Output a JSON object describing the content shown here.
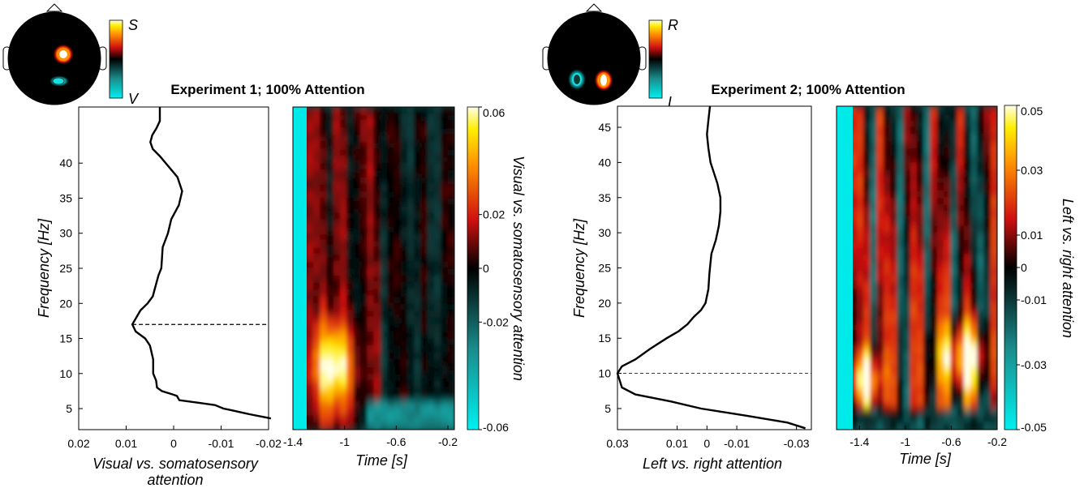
{
  "panels": [
    {
      "title": "Experiment 1; 100% Attention",
      "topo_cbar": {
        "top": "S",
        "bottom": "V"
      },
      "chart_data": {
        "type": "line",
        "ylabel": "Frequency [Hz]",
        "xlabel": [
          "Visual vs. somatosensory",
          "attention"
        ],
        "xlim": [
          0.02,
          -0.02
        ],
        "xticks": [
          0.02,
          0.01,
          0,
          -0.01,
          -0.02
        ],
        "xtick_labels": [
          "0.02",
          "0.01",
          "0",
          "-0.01",
          "-0.02"
        ],
        "ylim": [
          2,
          48
        ],
        "yticks": [
          5,
          10,
          15,
          20,
          25,
          30,
          35,
          40
        ],
        "ytick_labels": [
          "5",
          "10",
          "15",
          "20",
          "25",
          "30",
          "35",
          "40"
        ],
        "reference_line": {
          "frequency": 17
        },
        "x": [
          0.0029,
          0.0029,
          0.0036,
          0.0045,
          0.0049,
          0.0044,
          0.0029,
          -0.0008,
          -0.0018,
          -0.0011,
          0.0005,
          0.0012,
          0.0023,
          0.0025,
          0.0026,
          0.0032,
          0.004,
          0.0044,
          0.0055,
          0.007,
          0.0087,
          0.008,
          0.006,
          0.005,
          0.0043,
          0.0043,
          0.0037,
          0.0035,
          0.0025,
          0.0001,
          -0.0007,
          -0.0012,
          -0.0055,
          -0.0087,
          -0.0105,
          -0.012,
          -0.014,
          -0.016,
          -0.019,
          -0.0205
        ],
        "y": [
          48,
          46,
          45,
          44,
          43,
          42,
          41,
          38,
          36,
          34,
          32,
          30,
          28,
          26,
          25,
          24,
          22,
          21,
          20,
          19,
          17,
          16,
          15,
          14,
          12,
          10,
          9,
          8,
          7.5,
          7,
          6.8,
          6.2,
          5.8,
          5.5,
          5.0,
          4.8,
          4.5,
          4.2,
          3.8,
          3.6
        ]
      },
      "heatmap": {
        "type": "heatmap",
        "xlabel": "Time [s]",
        "xlim": [
          -1.4,
          -0.15
        ],
        "xticks": [
          -1.4,
          -1,
          -0.6,
          -0.2
        ],
        "xtick_labels": [
          "-1.4",
          "-1",
          "-0.6",
          "-0.2"
        ],
        "ylim": [
          2,
          48
        ],
        "clim": [
          -0.06,
          0.06
        ],
        "cbar_ticks": [
          0.06,
          0.02,
          0,
          -0.02,
          -0.06
        ],
        "cbar_labels": [
          "0.06",
          "0.02",
          "0",
          "-0.02",
          "-0.06"
        ],
        "cbar_label": "Visual vs. somatosensory attention"
      }
    },
    {
      "title": "Experiment 2; 100% Attention",
      "topo_cbar": {
        "top": "R",
        "bottom": "L"
      },
      "chart_data": {
        "type": "line",
        "ylabel": "Frequency [Hz]",
        "xlabel": [
          "Left vs. right attention"
        ],
        "xlim": [
          0.03,
          -0.035
        ],
        "xticks": [
          0.03,
          0.01,
          0,
          -0.01,
          -0.03
        ],
        "xtick_labels": [
          "0.03",
          "0.01",
          "0",
          "-0.01",
          "-0.03"
        ],
        "ylim": [
          2,
          48
        ],
        "yticks": [
          5,
          10,
          15,
          20,
          25,
          30,
          35,
          40,
          45
        ],
        "ytick_labels": [
          "5",
          "10",
          "15",
          "20",
          "25",
          "30",
          "35",
          "40",
          "45"
        ],
        "reference_line": {
          "frequency": 10
        },
        "x": [
          -0.001,
          -0.0005,
          0.0,
          -0.0005,
          -0.0012,
          -0.0035,
          -0.0045,
          -0.0045,
          -0.004,
          -0.003,
          -0.0015,
          -0.001,
          -0.0008,
          -0.0005,
          0.0,
          0.0005,
          0.002,
          0.0045,
          0.0065,
          0.0095,
          0.0135,
          0.019,
          0.024,
          0.0285,
          0.03,
          0.0285,
          0.024,
          0.012,
          0.002,
          -0.013,
          -0.027,
          -0.033
        ],
        "y": [
          48,
          46,
          44,
          42,
          40,
          37,
          35,
          33,
          31,
          29,
          27,
          25,
          24,
          22,
          21,
          20,
          19,
          18,
          17,
          16,
          15,
          13.5,
          12,
          11,
          10,
          8,
          7,
          6,
          5,
          4,
          3,
          2.2
        ]
      },
      "heatmap": {
        "type": "heatmap",
        "xlabel": "Time [s]",
        "xlim": [
          -1.6,
          -0.2
        ],
        "xticks": [
          -1.4,
          -1,
          -0.6,
          -0.2
        ],
        "xtick_labels": [
          "-1.4",
          "-1",
          "-0.6",
          "-0.2"
        ],
        "ylim": [
          2,
          48
        ],
        "clim": [
          -0.05,
          0.05
        ],
        "cbar_ticks": [
          0.05,
          0.03,
          0.01,
          0,
          -0.01,
          -0.03,
          -0.05
        ],
        "cbar_labels": [
          "0.05",
          "0.03",
          "0.01",
          "0",
          "-0.01",
          "-0.03",
          "-0.05"
        ],
        "cbar_label": "Left vs. right attention"
      }
    }
  ]
}
